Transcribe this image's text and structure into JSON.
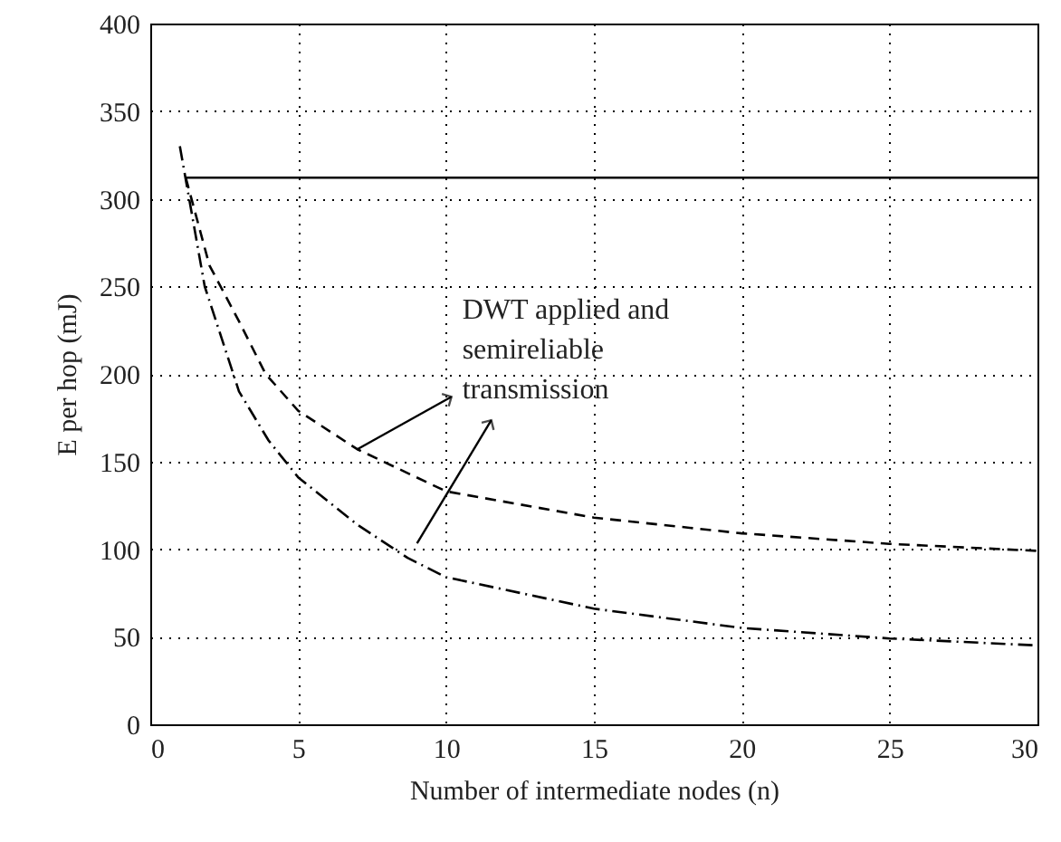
{
  "chart_data": {
    "type": "line",
    "xlabel": "Number of intermediate nodes (n)",
    "ylabel": "E per hop (mJ)",
    "xlim": [
      0,
      30
    ],
    "xticks": [
      0,
      5,
      10,
      15,
      20,
      25,
      30
    ],
    "ylim": [
      0,
      400
    ],
    "yticks": [
      0,
      50,
      100,
      150,
      200,
      250,
      300,
      350,
      400
    ],
    "grid": true,
    "marker": "none",
    "annotations": [
      {
        "text": "DWT applied and\nsemireliable\ntransmission",
        "x": 7,
        "y": 157
      }
    ],
    "series": [
      {
        "color": "#000000",
        "line_style": "solid",
        "x": [
          1.2,
          30
        ],
        "values": [
          312,
          312
        ]
      },
      {
        "color": "#000000",
        "line_style": "dashed",
        "x": [
          1.2,
          2,
          3,
          3.9,
          5,
          7,
          10,
          15,
          20,
          25,
          30
        ],
        "values": [
          312,
          262,
          230,
          200,
          179,
          157,
          133,
          118,
          109,
          103,
          99
        ]
      },
      {
        "color": "#000000",
        "line_style": "dashdot",
        "x": [
          1,
          1.84,
          3,
          4,
          5,
          7,
          8.7,
          10,
          15,
          20,
          25,
          30
        ],
        "values": [
          330,
          250,
          190,
          162,
          141,
          114,
          95,
          84,
          66,
          55,
          49,
          45
        ]
      }
    ]
  }
}
